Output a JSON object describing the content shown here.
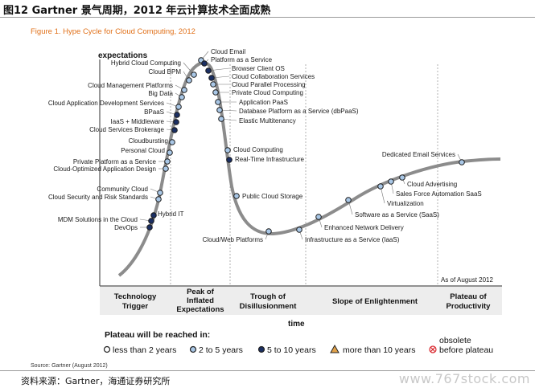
{
  "header": {
    "title": "图12 Gartner 景气周期，2012 年云计算技术全面成熟"
  },
  "figure": {
    "caption": "Figure 1. Hype Cycle for Cloud Computing, 2012",
    "y_axis_label": "expectations",
    "x_axis_label": "time",
    "as_of": "As of August 2012",
    "phases": [
      {
        "line1": "Technology",
        "line2": "Trigger",
        "line3": ""
      },
      {
        "line1": "Peak of",
        "line2": "Inflated",
        "line3": "Expectations"
      },
      {
        "line1": "Trough of",
        "line2": "Disillusionment",
        "line3": ""
      },
      {
        "line1": "Slope of Enlightenment",
        "line2": "",
        "line3": ""
      },
      {
        "line1": "Plateau of",
        "line2": "Productivity",
        "line3": ""
      }
    ],
    "legend": {
      "heading": "Plateau will be reached in:",
      "items": [
        {
          "label": "less than 2 years",
          "marker": "circle-white"
        },
        {
          "label": "2 to 5 years",
          "marker": "circle-light"
        },
        {
          "label": "5 to 10 years",
          "marker": "circle-dark"
        },
        {
          "label": "more than 10 years",
          "marker": "triangle"
        },
        {
          "label1": "obsolete",
          "label2": "before plateau",
          "marker": "x-circle"
        }
      ]
    },
    "source": "Source: Gartner (August 2012)",
    "colors": {
      "curve": "#8c8c8c",
      "white": "#ffffff",
      "light": "#a9c7e6",
      "dark": "#1b2f63",
      "triangle": "#e2a24a",
      "obsolete": "#d9272e",
      "caption": "#e1711a"
    },
    "technologies": [
      {
        "name": "Hybrid Cloud Computing",
        "class": "light"
      },
      {
        "name": "Cloud BPM",
        "class": "light"
      },
      {
        "name": "Cloud Management Platforms",
        "class": "light"
      },
      {
        "name": "Big Data",
        "class": "light"
      },
      {
        "name": "Cloud Application Development Services",
        "class": "light"
      },
      {
        "name": "BPaaS",
        "class": "dark"
      },
      {
        "name": "IaaS + Middleware",
        "class": "dark"
      },
      {
        "name": "Cloud Services Brokerage",
        "class": "dark"
      },
      {
        "name": "Cloudbursting",
        "class": "light"
      },
      {
        "name": "Personal Cloud",
        "class": "light"
      },
      {
        "name": "Private Platform as a Service",
        "class": "light"
      },
      {
        "name": "Cloud-Optimized Application Design",
        "class": "light"
      },
      {
        "name": "Community Cloud",
        "class": "light"
      },
      {
        "name": "Cloud Security and Risk Standards",
        "class": "light"
      },
      {
        "name": "Hybrid IT",
        "class": "dark"
      },
      {
        "name": "MDM Solutions in the Cloud",
        "class": "dark"
      },
      {
        "name": "DevOps",
        "class": "dark"
      },
      {
        "name": "Cloud Email",
        "class": "light"
      },
      {
        "name": "Platform as a Service",
        "class": "dark"
      },
      {
        "name": "Browser Client OS",
        "class": "dark"
      },
      {
        "name": "Cloud Collaboration Services",
        "class": "dark"
      },
      {
        "name": "Cloud Parallel Processing",
        "class": "light"
      },
      {
        "name": "Private Cloud Computing",
        "class": "light"
      },
      {
        "name": "Application PaaS",
        "class": "light"
      },
      {
        "name": "Database Platform as a Service (dbPaaS)",
        "class": "light"
      },
      {
        "name": "Elastic Multitenancy",
        "class": "light"
      },
      {
        "name": "Cloud Computing",
        "class": "light"
      },
      {
        "name": "Real-Time Infrastructure",
        "class": "dark"
      },
      {
        "name": "Public Cloud Storage",
        "class": "light"
      },
      {
        "name": "Cloud/Web Platforms",
        "class": "light"
      },
      {
        "name": "Infrastructure as a Service (IaaS)",
        "class": "light"
      },
      {
        "name": "Enhanced Network Delivery",
        "class": "light"
      },
      {
        "name": "Software as a Service (SaaS)",
        "class": "light"
      },
      {
        "name": "Virtualization",
        "class": "light"
      },
      {
        "name": "Sales Force Automation SaaS",
        "class": "light"
      },
      {
        "name": "Cloud Advertising",
        "class": "light"
      },
      {
        "name": "Dedicated Email Services",
        "class": "light"
      }
    ]
  },
  "footer": {
    "source": "资料来源：Gartner，海通证券研究所",
    "watermark": "www.767stock.com"
  }
}
